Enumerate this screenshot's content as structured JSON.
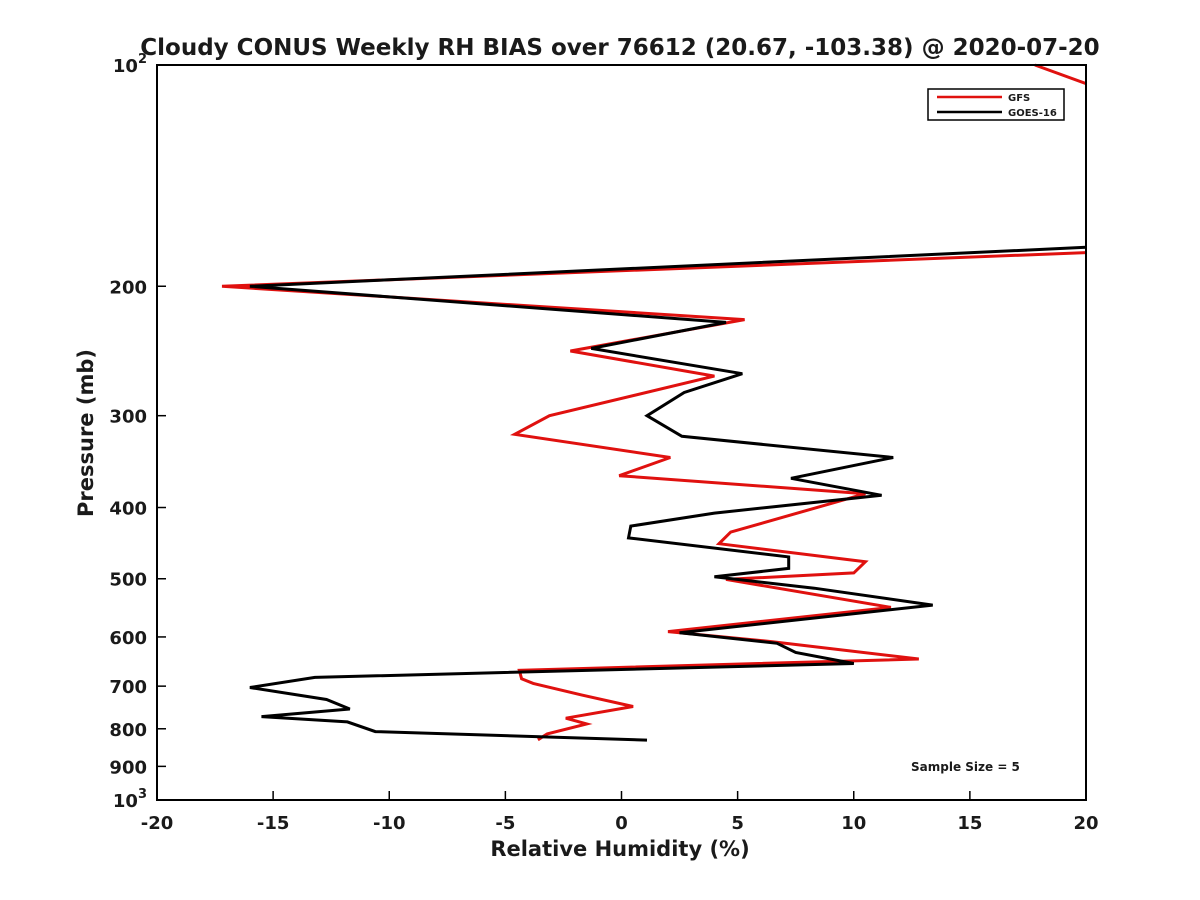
{
  "chart_data": {
    "type": "line",
    "title": "Cloudy CONUS Weekly RH BIAS over 76612 (20.67, -103.38) @ 2020-07-20",
    "xlabel": "Relative Humidity (%)",
    "ylabel": "Pressure (mb)",
    "xlim": [
      -20,
      20
    ],
    "ylim": [
      100,
      1000
    ],
    "y_scale": "log",
    "y_reversed": true,
    "x_ticks": [
      "-20",
      "-15",
      "-10",
      "-5",
      "0",
      "5",
      "10",
      "15",
      "20"
    ],
    "x_tick_values": [
      -20,
      -15,
      -10,
      -5,
      0,
      5,
      10,
      15,
      20
    ],
    "y_ticks": [
      {
        "value": 100,
        "base": "10",
        "exp": "2"
      },
      {
        "value": 200,
        "label": "200"
      },
      {
        "value": 300,
        "label": "300"
      },
      {
        "value": 400,
        "label": "400"
      },
      {
        "value": 500,
        "label": "500"
      },
      {
        "value": 600,
        "label": "600"
      },
      {
        "value": 700,
        "label": "700"
      },
      {
        "value": 800,
        "label": "800"
      },
      {
        "value": 900,
        "label": "900"
      },
      {
        "value": 1000,
        "base": "10",
        "exp": "3"
      }
    ],
    "legend_position": "top-right",
    "series": [
      {
        "name": "GFS",
        "color": "#e0110f",
        "segments": [
          [
            [
              17.8,
              100
            ],
            [
              20,
              106
            ]
          ],
          [
            [
              20,
              180
            ],
            [
              -17.2,
              200
            ],
            [
              5.3,
              222
            ],
            [
              -2.2,
              245
            ],
            [
              4,
              265
            ],
            [
              -3.1,
              300
            ],
            [
              -4.6,
              318
            ],
            [
              2.1,
              342
            ],
            [
              -0.1,
              362
            ],
            [
              10.5,
              383
            ],
            [
              4.7,
              432
            ],
            [
              4.2,
              448
            ],
            [
              10.5,
              474
            ],
            [
              10,
              491
            ],
            [
              4.5,
              501
            ],
            [
              11.6,
              547
            ],
            [
              2,
              590
            ],
            [
              6.5,
              609
            ],
            [
              12.8,
              643
            ],
            [
              -4.4,
              666
            ],
            [
              -4.3,
              684
            ],
            [
              -3.8,
              694
            ],
            [
              -1.7,
              720
            ],
            [
              0.5,
              746
            ],
            [
              -2.4,
              774
            ],
            [
              -1.5,
              788
            ],
            [
              -3.2,
              813
            ],
            [
              -3.6,
              828
            ]
          ]
        ]
      },
      {
        "name": "GOES-16",
        "color": "#000000",
        "segments": [
          [
            [
              20,
              177
            ],
            [
              -16,
              200
            ],
            [
              4.5,
              224
            ],
            [
              -1.3,
              243
            ],
            [
              5.2,
              263
            ],
            [
              2.7,
              279
            ],
            [
              1.1,
              300
            ],
            [
              2.6,
              320
            ],
            [
              11.7,
              342
            ],
            [
              7.3,
              365
            ],
            [
              11.2,
              385
            ],
            [
              4,
              407
            ],
            [
              0.4,
              424
            ],
            [
              0.3,
              440
            ],
            [
              7.2,
              467
            ],
            [
              7.2,
              484
            ],
            [
              4,
              497
            ],
            [
              8.3,
              515
            ],
            [
              13.4,
              543
            ],
            [
              2.5,
              592
            ],
            [
              6.7,
              612
            ],
            [
              7.5,
              630
            ],
            [
              10,
              652
            ],
            [
              -13.2,
              681
            ],
            [
              -16,
              703
            ],
            [
              -12.7,
              730
            ],
            [
              -11.7,
              752
            ],
            [
              -15.5,
              770
            ],
            [
              -11.8,
              783
            ],
            [
              -10.6,
              807
            ],
            [
              1.1,
              829
            ]
          ]
        ]
      }
    ],
    "annotations": [
      "Sample Size = 5"
    ]
  }
}
